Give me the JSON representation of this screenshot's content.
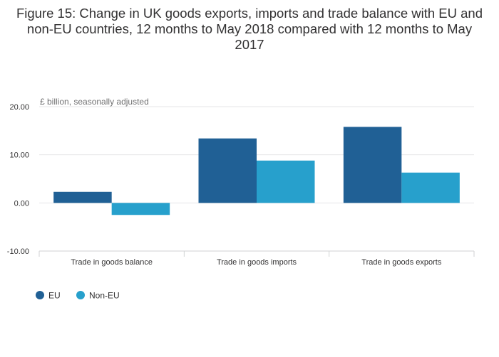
{
  "title": "Figure 15: Change in UK goods exports, imports and trade balance with EU and non-EU countries, 12 months to May 2018 compared with 12 months to May 2017",
  "chart_data": {
    "type": "bar",
    "title": "Figure 15: Change in UK goods exports, imports and trade balance with EU and non-EU countries, 12 months to May 2018 compared with 12 months to May 2017",
    "ylabel": "£ billion, seasonally adjusted",
    "xlabel": "",
    "categories": [
      "Trade in goods balance",
      "Trade in goods imports",
      "Trade in goods exports"
    ],
    "series": [
      {
        "name": "EU",
        "color": "#206095",
        "values": [
          2.3,
          13.4,
          15.8
        ]
      },
      {
        "name": "Non-EU",
        "color": "#27a0cc",
        "values": [
          -2.5,
          8.8,
          6.3
        ]
      }
    ],
    "ylim": [
      -10,
      20
    ],
    "yticks": [
      20,
      10,
      0,
      -10
    ],
    "ytick_labels": [
      "20.00",
      "10.00",
      "0.00",
      "-10.00"
    ],
    "grid": true,
    "legend": "bottom-left"
  }
}
